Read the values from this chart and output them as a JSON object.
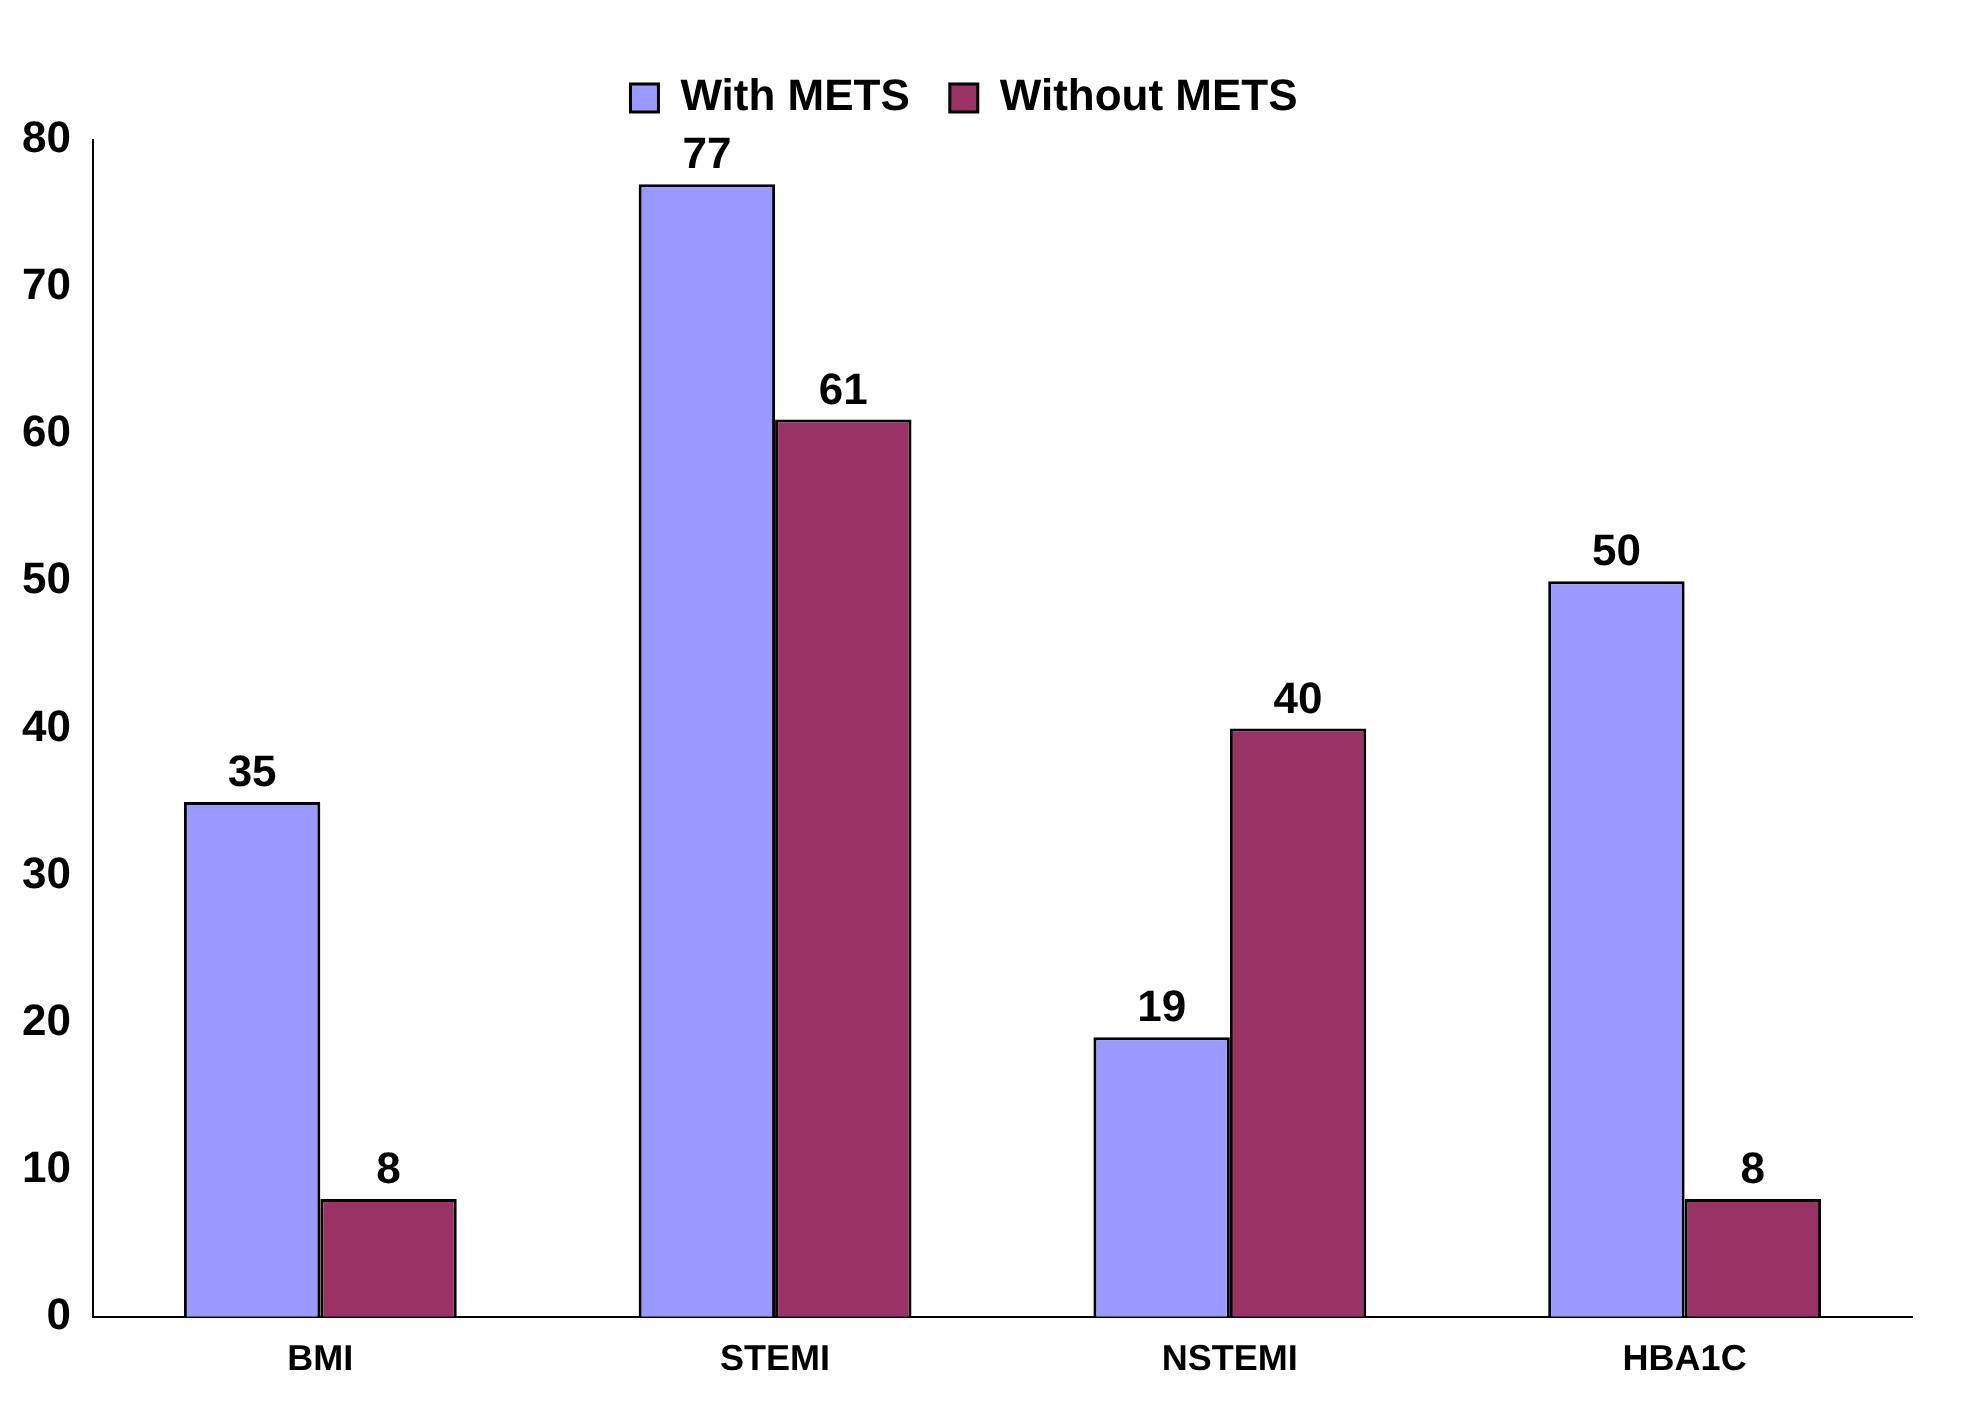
{
  "chart_data": {
    "type": "bar",
    "categories": [
      "BMI",
      "STEMI",
      "NSTEMI",
      "HBA1C"
    ],
    "series": [
      {
        "name": "With METS",
        "color": "#9999ff",
        "values": [
          35,
          77,
          19,
          50
        ]
      },
      {
        "name": "Without METS",
        "color": "#993366",
        "values": [
          8,
          61,
          40,
          8
        ]
      }
    ],
    "ylim": [
      0,
      80
    ],
    "yticks": [
      0,
      10,
      20,
      30,
      40,
      50,
      60,
      70,
      80
    ],
    "grid": false,
    "legend": "top",
    "data_labels": true
  }
}
